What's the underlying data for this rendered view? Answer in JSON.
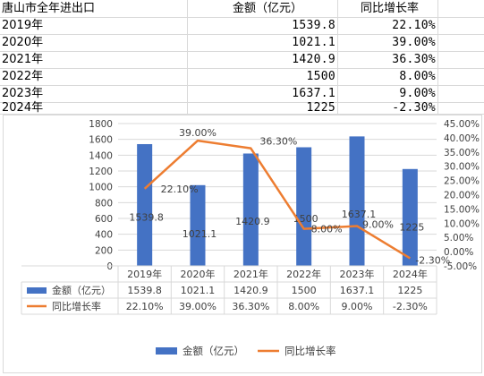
{
  "table": {
    "header": {
      "col0": "唐山市全年进出口",
      "col1": "金额（亿元）",
      "col2": "同比增长率"
    },
    "rows": [
      {
        "year": "2019年",
        "amount": "1539.8",
        "rate": "22.10%"
      },
      {
        "year": "2020年",
        "amount": "1021.1",
        "rate": "39.00%"
      },
      {
        "year": "2021年",
        "amount": "1420.9",
        "rate": "36.30%"
      },
      {
        "year": "2022年",
        "amount": "1500",
        "rate": "8.00%"
      },
      {
        "year": "2023年",
        "amount": "1637.1",
        "rate": "9.00%"
      },
      {
        "year": "2024年",
        "amount": "1225",
        "rate": "-2.30%"
      }
    ]
  },
  "chart_data": {
    "type": "bar",
    "categories": [
      "2019年",
      "2020年",
      "2021年",
      "2022年",
      "2023年",
      "2024年"
    ],
    "series": [
      {
        "name": "金额（亿元）",
        "type": "bar",
        "axis": "left",
        "values": [
          1539.8,
          1021.1,
          1420.9,
          1500,
          1637.1,
          1225
        ],
        "labels": [
          "1539.8",
          "1021.1",
          "1420.9",
          "1500",
          "1637.1",
          "1225"
        ],
        "color": "#4472c4"
      },
      {
        "name": "同比增长率",
        "type": "line",
        "axis": "right",
        "values": [
          22.1,
          39.0,
          36.3,
          8.0,
          9.0,
          -2.3
        ],
        "labels": [
          "22.10%",
          "39.00%",
          "36.30%",
          "8.00%",
          "9.00%",
          "-2.30%"
        ],
        "color": "#ed7d31"
      }
    ],
    "ylim_left": [
      0,
      1800
    ],
    "left_ticks": [
      "0",
      "200",
      "400",
      "600",
      "800",
      "1000",
      "1200",
      "1400",
      "1600",
      "1800"
    ],
    "ylim_right": [
      -5,
      45
    ],
    "right_ticks": [
      "-5.00%",
      "0.00%",
      "5.00%",
      "10.00%",
      "15.00%",
      "20.00%",
      "25.00%",
      "30.00%",
      "35.00%",
      "40.00%",
      "45.00%"
    ],
    "grid": true,
    "legend": "bottom",
    "data_table": {
      "rows": [
        {
          "name": "金额（亿元）",
          "values": [
            "1539.8",
            "1021.1",
            "1420.9",
            "1500",
            "1637.1",
            "1225"
          ]
        },
        {
          "name": "同比增长率",
          "values": [
            "22.10%",
            "39.00%",
            "36.30%",
            "8.00%",
            "9.00%",
            "-2.30%"
          ]
        }
      ]
    },
    "legend_labels": [
      "金额（亿元）",
      "同比增长率"
    ]
  }
}
